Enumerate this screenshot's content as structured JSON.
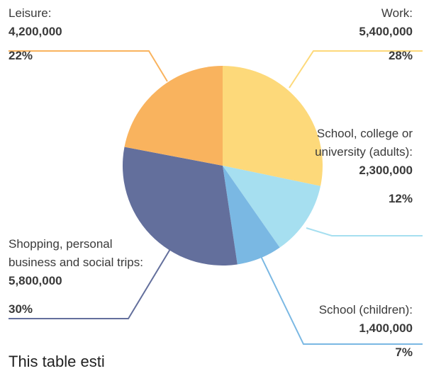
{
  "chart_data": {
    "type": "pie",
    "slices": [
      {
        "label": "Work:",
        "value_text": "5,400,000",
        "value": 5400000,
        "percent": 28,
        "percent_text": "28%",
        "color": "#fdd97a"
      },
      {
        "label": "School, college or university (adults):",
        "value_text": "2,300,000",
        "value": 2300000,
        "percent": 12,
        "percent_text": "12%",
        "color": "#a6dff0"
      },
      {
        "label": "School (children):",
        "value_text": "1,400,000",
        "value": 1400000,
        "percent": 7,
        "percent_text": "7%",
        "color": "#7ab8e3"
      },
      {
        "label": "Shopping, personal business and social trips:",
        "value_text": "5,800,000",
        "value": 5800000,
        "percent": 30,
        "percent_text": "30%",
        "color": "#636f9c"
      },
      {
        "label": "Leisure:",
        "value_text": "4,200,000",
        "value": 4200000,
        "percent": 22,
        "percent_text": "22%",
        "color": "#f9b35e"
      }
    ],
    "footer": "This table esti"
  }
}
